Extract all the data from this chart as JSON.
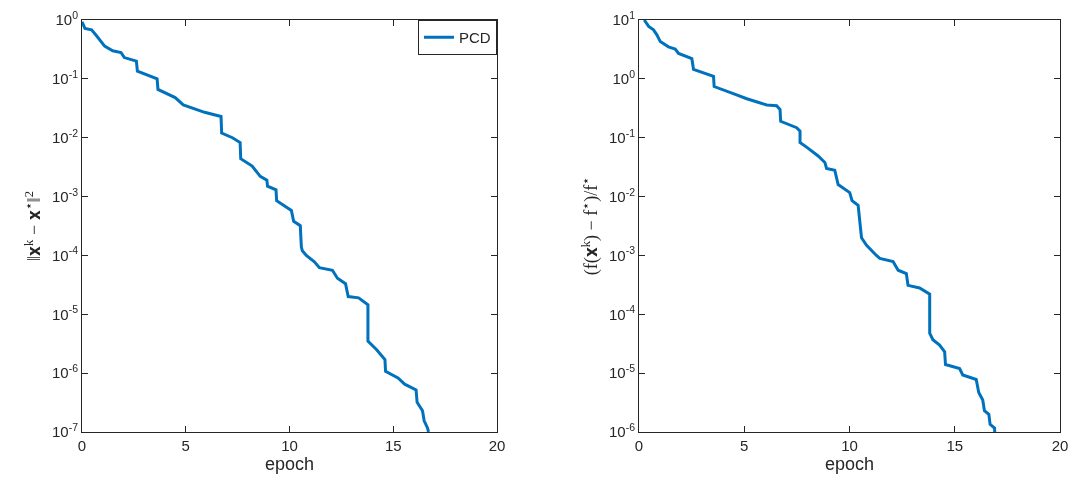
{
  "chart_data": [
    {
      "type": "line",
      "xlabel": "epoch",
      "ylabel": "‖𝐱$^{k}$ − 𝐱$^{⋆}$‖$^{2}$",
      "log": "y",
      "grid": false,
      "legend": "top right",
      "line_style": "solid",
      "marker": "none",
      "xlim": [
        0,
        20
      ],
      "xticks": [
        0,
        5,
        10,
        15,
        20
      ],
      "ylim": [
        1e-07,
        1
      ],
      "yticks": [
        {
          "value": 1e-07,
          "label": "10$^{-7}$"
        },
        {
          "value": 1e-06,
          "label": "10$^{-6}$"
        },
        {
          "value": 1e-05,
          "label": "10$^{-5}$"
        },
        {
          "value": 0.0001,
          "label": "10$^{-4}$"
        },
        {
          "value": 0.001,
          "label": "10$^{-3}$"
        },
        {
          "value": 0.01,
          "label": "10$^{-2}$"
        },
        {
          "value": 0.1,
          "label": "10$^{-1}$"
        },
        {
          "value": 1,
          "label": "10$^{0}$"
        }
      ],
      "series": [
        {
          "name": "PCD",
          "color": "#0072bd",
          "x": [
            0,
            0.14,
            0.46,
            0.7,
            1.09,
            1.48,
            1.88,
            2.04,
            2.62,
            2.67,
            3.62,
            3.66,
            4.49,
            4.88,
            5.91,
            6.7,
            6.73,
            7.25,
            7.62,
            7.65,
            8.2,
            8.59,
            8.91,
            8.94,
            9.35,
            9.38,
            10.09,
            10.2,
            10.52,
            10.57,
            10.62,
            10.81,
            11.2,
            11.44,
            12.07,
            12.31,
            12.7,
            12.83,
            13.33,
            13.78,
            13.78,
            14.2,
            14.6,
            14.63,
            15.23,
            15.55,
            16.1,
            16.15,
            16.41,
            16.49,
            16.65,
            16.7
          ],
          "values": [
            0.93,
            0.72,
            0.68,
            0.54,
            0.36,
            0.3,
            0.28,
            0.23,
            0.2,
            0.135,
            0.1,
            0.066,
            0.048,
            0.036,
            0.027,
            0.023,
            0.012,
            0.01,
            0.0083,
            0.0044,
            0.0033,
            0.0022,
            0.0019,
            0.0015,
            0.0013,
            0.00085,
            0.00058,
            0.00038,
            0.00032,
            0.00014,
            0.00012,
            0.0001,
            7.8e-05,
            6.2e-05,
            5.6e-05,
            4.1e-05,
            3.3e-05,
            2e-05,
            1.9e-05,
            1.45e-05,
            3.5e-06,
            2.5e-06,
            1.7e-06,
            1.07e-06,
            8.3e-07,
            6.5e-07,
            5.2e-07,
            3.2e-07,
            2.3e-07,
            1.55e-07,
            1.17e-07,
            1e-07
          ]
        }
      ]
    },
    {
      "type": "line",
      "xlabel": "epoch",
      "ylabel": "(f(𝐱$^{k}$) − f$^{⋆}$)/f$^{⋆}$",
      "log": "y",
      "grid": false,
      "legend": false,
      "line_style": "solid",
      "marker": "none",
      "xlim": [
        0,
        20
      ],
      "xticks": [
        0,
        5,
        10,
        15,
        20
      ],
      "ylim": [
        1e-06,
        10
      ],
      "yticks": [
        {
          "value": 1e-06,
          "label": "10$^{-6}$"
        },
        {
          "value": 1e-05,
          "label": "10$^{-5}$"
        },
        {
          "value": 0.0001,
          "label": "10$^{-4}$"
        },
        {
          "value": 0.001,
          "label": "10$^{-3}$"
        },
        {
          "value": 0.01,
          "label": "10$^{-2}$"
        },
        {
          "value": 0.1,
          "label": "10$^{-1}$"
        },
        {
          "value": 1,
          "label": "10$^{0}$"
        },
        {
          "value": 10,
          "label": "10$^{1}$"
        }
      ],
      "series": [
        {
          "color": "#0072bd",
          "x": [
            0.25,
            0.46,
            0.69,
            0.85,
            1.01,
            1.4,
            1.72,
            1.88,
            2.51,
            2.59,
            3.54,
            3.57,
            4.48,
            5.12,
            6.07,
            6.54,
            6.7,
            6.73,
            7.49,
            7.65,
            7.65,
            8.04,
            8.51,
            8.83,
            8.91,
            9.3,
            9.46,
            10.01,
            10.12,
            10.41,
            10.57,
            10.81,
            11.28,
            11.44,
            12.07,
            12.31,
            12.7,
            12.78,
            13.33,
            13.81,
            13.81,
            13.96,
            14.28,
            14.52,
            14.56,
            15.23,
            15.38,
            16.02,
            16.14,
            16.33,
            16.41,
            16.62,
            16.68,
            16.89,
            16.9
          ],
          "values": [
            10,
            7.8,
            6.8,
            5.6,
            4.3,
            3.5,
            3.2,
            2.7,
            2.2,
            1.45,
            1.1,
            0.74,
            0.56,
            0.46,
            0.36,
            0.35,
            0.3,
            0.19,
            0.148,
            0.129,
            0.083,
            0.066,
            0.049,
            0.038,
            0.03,
            0.028,
            0.016,
            0.0117,
            0.0085,
            0.0071,
            0.002,
            0.00148,
            0.001,
            0.00089,
            0.00079,
            0.00056,
            0.00049,
            0.00031,
            0.00028,
            0.00022,
            4.8e-05,
            3.7e-05,
            3e-05,
            2.3e-05,
            1.4e-05,
            1.2e-05,
            9.3e-06,
            7.8e-06,
            4.7e-06,
            3.5e-06,
            2.3e-06,
            2e-06,
            1.35e-06,
            1.17e-06,
            1e-06
          ]
        }
      ]
    }
  ]
}
